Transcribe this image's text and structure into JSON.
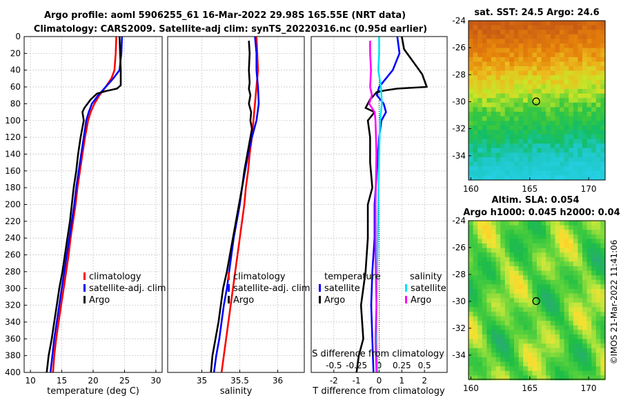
{
  "header": {
    "title_line1": "Argo profile: aoml 5906255_61 16-Mar-2022 29.98S 165.55E (NRT data)",
    "title_line2": "Climatology: CARS2009. Satellite-adj clim: synTS_20220316.nc (0.95d earlier)"
  },
  "colors": {
    "climatology": "#ff0000",
    "satellite_adj": "#0000ff",
    "argo": "#000000",
    "satellite_t": "#0000ff",
    "satellite_s": "#00e5ee",
    "argo_s": "#ff00ff"
  },
  "chart_data": [
    {
      "id": "temperature",
      "type": "line",
      "xlabel": "temperature (deg C)",
      "ylabel": "",
      "xlim": [
        9,
        31
      ],
      "ylim": [
        0,
        400
      ],
      "xticks": [
        10,
        15,
        20,
        25,
        30
      ],
      "yticks": [
        0,
        20,
        40,
        60,
        80,
        100,
        120,
        140,
        160,
        180,
        200,
        220,
        240,
        260,
        280,
        300,
        320,
        340,
        360,
        380,
        400
      ],
      "grid": true,
      "legend": {
        "entries": [
          "climatology",
          "satellite-adj. clim",
          "Argo"
        ],
        "position": "bottom-right"
      },
      "series": [
        {
          "name": "climatology",
          "color": "#ff0000",
          "points": [
            [
              23.7,
              0
            ],
            [
              23.6,
              20
            ],
            [
              23.4,
              40
            ],
            [
              22.9,
              50
            ],
            [
              22.0,
              60
            ],
            [
              21.0,
              70
            ],
            [
              20.2,
              80
            ],
            [
              19.6,
              90
            ],
            [
              19.2,
              100
            ],
            [
              18.7,
              120
            ],
            [
              18.3,
              140
            ],
            [
              17.9,
              160
            ],
            [
              17.5,
              180
            ],
            [
              17.2,
              200
            ],
            [
              16.8,
              220
            ],
            [
              16.4,
              240
            ],
            [
              16.1,
              260
            ],
            [
              15.7,
              280
            ],
            [
              15.3,
              300
            ],
            [
              14.9,
              320
            ],
            [
              14.5,
              340
            ],
            [
              14.1,
              360
            ],
            [
              13.8,
              380
            ],
            [
              13.6,
              400
            ]
          ]
        },
        {
          "name": "satellite-adj. clim",
          "color": "#0000ff",
          "points": [
            [
              24.6,
              0
            ],
            [
              24.5,
              20
            ],
            [
              24.2,
              40
            ],
            [
              23.2,
              50
            ],
            [
              22.0,
              60
            ],
            [
              20.8,
              70
            ],
            [
              19.8,
              80
            ],
            [
              19.3,
              90
            ],
            [
              18.9,
              100
            ],
            [
              18.5,
              120
            ],
            [
              18.1,
              140
            ],
            [
              17.7,
              160
            ],
            [
              17.3,
              180
            ],
            [
              17.0,
              200
            ],
            [
              16.6,
              220
            ],
            [
              16.2,
              240
            ],
            [
              15.8,
              260
            ],
            [
              15.4,
              280
            ],
            [
              15.0,
              300
            ],
            [
              14.6,
              320
            ],
            [
              14.2,
              340
            ],
            [
              13.8,
              360
            ],
            [
              13.5,
              380
            ],
            [
              13.2,
              400
            ]
          ]
        },
        {
          "name": "Argo",
          "color": "#000000",
          "points": [
            [
              24.2,
              0
            ],
            [
              24.3,
              20
            ],
            [
              24.4,
              40
            ],
            [
              24.4,
              58
            ],
            [
              23.8,
              62
            ],
            [
              22.0,
              65
            ],
            [
              20.6,
              68
            ],
            [
              19.6,
              75
            ],
            [
              18.6,
              85
            ],
            [
              18.3,
              90
            ],
            [
              18.5,
              100
            ],
            [
              18.0,
              120
            ],
            [
              17.6,
              140
            ],
            [
              17.3,
              160
            ],
            [
              16.9,
              180
            ],
            [
              16.6,
              200
            ],
            [
              16.3,
              220
            ],
            [
              15.9,
              240
            ],
            [
              15.5,
              260
            ],
            [
              15.1,
              280
            ],
            [
              14.6,
              300
            ],
            [
              14.2,
              320
            ],
            [
              13.8,
              340
            ],
            [
              13.4,
              360
            ],
            [
              12.9,
              380
            ],
            [
              12.6,
              400
            ]
          ]
        }
      ]
    },
    {
      "id": "salinity",
      "type": "line",
      "xlabel": "salinity",
      "ylabel": "",
      "xlim": [
        34.55,
        36.35
      ],
      "ylim": [
        0,
        400
      ],
      "xticks": [
        35,
        35.5,
        36
      ],
      "grid": true,
      "legend": {
        "entries": [
          "climatology",
          "satellite-adj. clim",
          "Argo"
        ],
        "position": "bottom-right"
      },
      "series": [
        {
          "name": "climatology",
          "color": "#ff0000",
          "points": [
            [
              35.72,
              0
            ],
            [
              35.73,
              20
            ],
            [
              35.74,
              40
            ],
            [
              35.72,
              60
            ],
            [
              35.7,
              80
            ],
            [
              35.68,
              100
            ],
            [
              35.66,
              120
            ],
            [
              35.63,
              140
            ],
            [
              35.61,
              160
            ],
            [
              35.58,
              180
            ],
            [
              35.56,
              200
            ],
            [
              35.53,
              220
            ],
            [
              35.5,
              240
            ],
            [
              35.47,
              260
            ],
            [
              35.44,
              280
            ],
            [
              35.41,
              300
            ],
            [
              35.38,
              320
            ],
            [
              35.35,
              340
            ],
            [
              35.32,
              360
            ],
            [
              35.29,
              380
            ],
            [
              35.26,
              400
            ]
          ]
        },
        {
          "name": "satellite-adj. clim",
          "color": "#0000ff",
          "points": [
            [
              35.7,
              0
            ],
            [
              35.72,
              20
            ],
            [
              35.72,
              40
            ],
            [
              35.74,
              60
            ],
            [
              35.75,
              80
            ],
            [
              35.72,
              100
            ],
            [
              35.66,
              120
            ],
            [
              35.61,
              140
            ],
            [
              35.57,
              160
            ],
            [
              35.53,
              180
            ],
            [
              35.5,
              200
            ],
            [
              35.46,
              220
            ],
            [
              35.42,
              240
            ],
            [
              35.39,
              260
            ],
            [
              35.36,
              280
            ],
            [
              35.33,
              300
            ],
            [
              35.29,
              320
            ],
            [
              35.26,
              340
            ],
            [
              35.23,
              360
            ],
            [
              35.19,
              380
            ],
            [
              35.16,
              400
            ]
          ]
        },
        {
          "name": "Argo",
          "color": "#000000",
          "points": [
            [
              35.62,
              5
            ],
            [
              35.63,
              20
            ],
            [
              35.62,
              40
            ],
            [
              35.63,
              55
            ],
            [
              35.62,
              62
            ],
            [
              35.64,
              70
            ],
            [
              35.62,
              80
            ],
            [
              35.65,
              90
            ],
            [
              35.64,
              100
            ],
            [
              35.66,
              110
            ],
            [
              35.64,
              120
            ],
            [
              35.6,
              140
            ],
            [
              35.56,
              160
            ],
            [
              35.53,
              180
            ],
            [
              35.49,
              200
            ],
            [
              35.45,
              220
            ],
            [
              35.41,
              240
            ],
            [
              35.37,
              260
            ],
            [
              35.33,
              280
            ],
            [
              35.28,
              300
            ],
            [
              35.25,
              320
            ],
            [
              35.22,
              340
            ],
            [
              35.18,
              360
            ],
            [
              35.14,
              380
            ],
            [
              35.12,
              400
            ]
          ]
        }
      ]
    },
    {
      "id": "difference",
      "type": "line",
      "xlabel": "T difference from climatology",
      "ylabel": "",
      "xlim": [
        -3,
        3
      ],
      "ylim": [
        0,
        400
      ],
      "xticks": [
        -2,
        -1,
        0,
        1,
        2
      ],
      "x2label": "S difference from climatology",
      "x2lim": [
        -0.75,
        0.75
      ],
      "x2ticks": [
        -0.5,
        -0.25,
        0,
        0.25,
        0.5
      ],
      "x2ticklabels": [
        "-0.5",
        "-0.25",
        "0",
        "0.25",
        "0.5"
      ],
      "grid": true,
      "legend": {
        "temperature_title": "temperature",
        "salinity_title": "salinity",
        "entries": [
          "satellite",
          "Argo",
          "satellite",
          "Argo"
        ],
        "position": "bottom"
      },
      "series": [
        {
          "name": "temperature satellite",
          "axis": "T",
          "color": "#0000ff",
          "points": [
            [
              0.8,
              0
            ],
            [
              0.9,
              20
            ],
            [
              0.6,
              40
            ],
            [
              0.0,
              60
            ],
            [
              -0.1,
              70
            ],
            [
              0.2,
              80
            ],
            [
              0.3,
              90
            ],
            [
              0.1,
              100
            ],
            [
              0.0,
              120
            ],
            [
              -0.1,
              160
            ],
            [
              -0.2,
              200
            ],
            [
              -0.2,
              240
            ],
            [
              -0.3,
              280
            ],
            [
              -0.35,
              320
            ],
            [
              -0.3,
              360
            ],
            [
              -0.25,
              400
            ]
          ]
        },
        {
          "name": "temperature Argo",
          "axis": "T",
          "color": "#000000",
          "points": [
            [
              1.0,
              0
            ],
            [
              1.1,
              15
            ],
            [
              1.5,
              30
            ],
            [
              1.9,
              45
            ],
            [
              2.1,
              60
            ],
            [
              0.8,
              62
            ],
            [
              0.3,
              64
            ],
            [
              -0.1,
              66
            ],
            [
              -0.4,
              75
            ],
            [
              -0.6,
              85
            ],
            [
              -0.2,
              90
            ],
            [
              -0.5,
              100
            ],
            [
              -0.4,
              120
            ],
            [
              -0.4,
              150
            ],
            [
              -0.3,
              180
            ],
            [
              -0.5,
              200
            ],
            [
              -0.5,
              240
            ],
            [
              -0.6,
              280
            ],
            [
              -0.8,
              320
            ],
            [
              -0.7,
              360
            ],
            [
              -0.9,
              380
            ],
            [
              -1.0,
              400
            ]
          ]
        },
        {
          "name": "salinity satellite",
          "axis": "S",
          "color": "#00e5ee",
          "points": [
            [
              0.0,
              0
            ],
            [
              0.0,
              20
            ],
            [
              -0.01,
              40
            ],
            [
              0.02,
              60
            ],
            [
              0.03,
              80
            ],
            [
              0.01,
              100
            ],
            [
              0.0,
              140
            ],
            [
              -0.01,
              200
            ],
            [
              -0.02,
              260
            ],
            [
              -0.03,
              320
            ],
            [
              -0.03,
              360
            ],
            [
              -0.02,
              400
            ]
          ]
        },
        {
          "name": "salinity Argo",
          "axis": "S",
          "color": "#ff00ff",
          "points": [
            [
              -0.1,
              5
            ],
            [
              -0.1,
              20
            ],
            [
              -0.09,
              40
            ],
            [
              -0.1,
              60
            ],
            [
              -0.08,
              70
            ],
            [
              -0.11,
              80
            ],
            [
              -0.05,
              90
            ],
            [
              -0.04,
              100
            ],
            [
              -0.03,
              140
            ],
            [
              -0.04,
              200
            ],
            [
              -0.04,
              260
            ],
            [
              -0.03,
              320
            ],
            [
              -0.04,
              360
            ],
            [
              -0.03,
              400
            ]
          ]
        }
      ]
    },
    {
      "id": "sst_map",
      "type": "heatmap",
      "title": "sat. SST: 24.5 Argo: 24.6",
      "xlim": [
        159.8,
        171.4
      ],
      "ylim": [
        -35.8,
        -24
      ],
      "xticks": [
        160,
        165,
        170
      ],
      "yticks": [
        -24,
        -26,
        -28,
        -30,
        -32,
        -34
      ],
      "marker": {
        "lon": 165.55,
        "lat": -29.98
      }
    },
    {
      "id": "sla_map",
      "type": "heatmap",
      "title_line1": "Altim. SLA: 0.054",
      "title_line2": "Argo h1000: 0.045 h2000: 0.04",
      "xlim": [
        159.8,
        171.4
      ],
      "ylim": [
        -35.8,
        -24
      ],
      "xticks": [
        160,
        165,
        170
      ],
      "yticks": [
        -24,
        -26,
        -28,
        -30,
        -32,
        -34
      ],
      "marker": {
        "lon": 165.55,
        "lat": -29.98
      }
    }
  ],
  "footer": {
    "imos_stamp": "©IMOS 21-Mar-2022 11:41:06"
  }
}
